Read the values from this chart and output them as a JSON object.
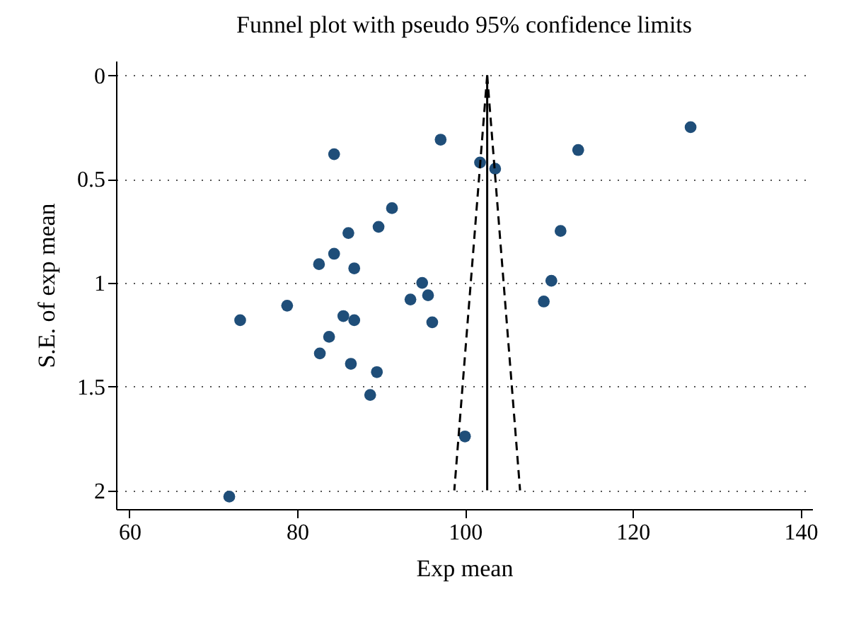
{
  "chart_data": {
    "type": "scatter",
    "title": "Funnel plot with pseudo 95% confidence limits",
    "xlabel": "Exp mean",
    "ylabel": "S.E. of exp mean",
    "xlim": [
      58.4,
      141.4
    ],
    "ylim": [
      2.09,
      -0.07
    ],
    "xticks": [
      60,
      80,
      100,
      120,
      140
    ],
    "yticks": [
      0,
      0.5,
      1,
      1.5,
      2
    ],
    "grid": "y",
    "marker": "circle",
    "series": [
      {
        "color": "#1f4e79",
        "x": [
          84.4,
          97.1,
          91.3,
          89.7,
          86.1,
          84.4,
          82.6,
          86.8,
          94.9,
          95.6,
          93.5,
          78.8,
          73.2,
          85.5,
          86.8,
          96.1,
          83.8,
          82.7,
          86.4,
          89.5,
          88.7,
          71.9,
          100.0,
          101.8,
          103.6,
          126.9,
          113.5,
          111.4,
          110.3,
          109.4
        ],
        "values": [
          0.38,
          0.31,
          0.64,
          0.73,
          0.76,
          0.86,
          0.91,
          0.93,
          1.0,
          1.06,
          1.08,
          1.11,
          1.18,
          1.16,
          1.18,
          1.19,
          1.26,
          1.34,
          1.39,
          1.43,
          1.54,
          2.03,
          1.74,
          0.42,
          0.45,
          0.25,
          0.36,
          0.75,
          0.99,
          1.09
        ]
      },
      {
        "type": "line",
        "marker": "none",
        "color": "#000000",
        "line_style": "solid",
        "x": [
          102.65,
          102.65
        ],
        "values": [
          0,
          2
        ]
      },
      {
        "type": "line",
        "marker": "none",
        "color": "#000000",
        "line_style": "dashed",
        "x": [
          102.65,
          98.73
        ],
        "values": [
          0,
          2
        ]
      },
      {
        "type": "line",
        "marker": "none",
        "color": "#000000",
        "line_style": "dashed",
        "x": [
          102.65,
          106.57
        ],
        "values": [
          0,
          2
        ]
      }
    ]
  }
}
